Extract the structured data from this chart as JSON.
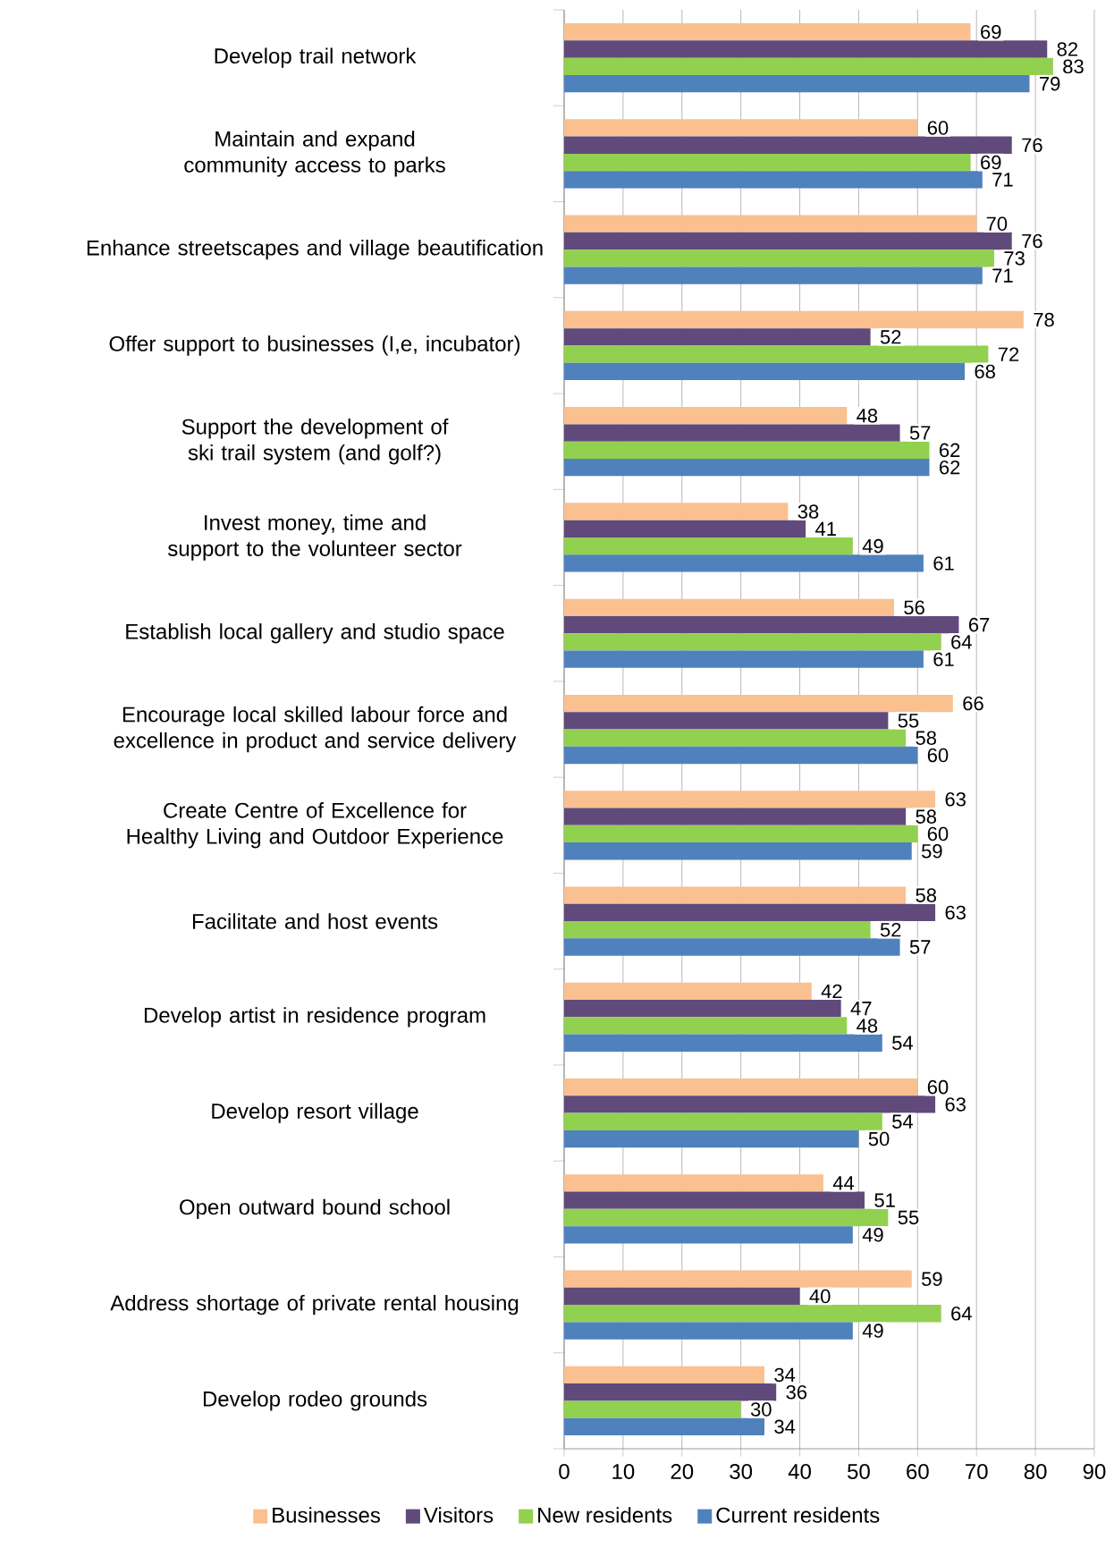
{
  "chart_data": {
    "type": "bar",
    "orientation": "horizontal",
    "categories": [
      "Develop trail network",
      "Maintain and expand community access to parks",
      "Enhance streetscapes and village beautification",
      "Offer support to businesses (I,e, incubator)",
      "Support the development of ski trail system (and golf?)",
      "Invest money, time and support to the volunteer sector",
      "Establish local gallery and studio space",
      "Encourage local skilled labour force and excellence in product and service delivery",
      "Create Centre of Excellence for Healthy Living and Outdoor Experience",
      "Facilitate and host events",
      "Develop artist in residence program",
      "Develop resort village",
      "Open outward bound school",
      "Address shortage of private rental housing",
      "Develop rodeo grounds"
    ],
    "series": [
      {
        "name": "Businesses",
        "color": "#fac090",
        "values": [
          69,
          60,
          70,
          78,
          48,
          38,
          56,
          66,
          63,
          58,
          42,
          60,
          44,
          59,
          34
        ]
      },
      {
        "name": "Visitors",
        "color": "#604a7b",
        "values": [
          82,
          76,
          76,
          52,
          57,
          41,
          67,
          55,
          58,
          63,
          47,
          63,
          51,
          40,
          36
        ]
      },
      {
        "name": "New residents",
        "color": "#92d050",
        "values": [
          83,
          69,
          73,
          72,
          62,
          49,
          64,
          58,
          60,
          52,
          48,
          54,
          55,
          64,
          30
        ]
      },
      {
        "name": "Current residents",
        "color": "#4f81bd",
        "values": [
          79,
          71,
          71,
          68,
          62,
          61,
          61,
          60,
          59,
          57,
          54,
          50,
          49,
          49,
          34
        ]
      }
    ],
    "xlim": [
      0,
      90
    ],
    "xticks": [
      0,
      10,
      20,
      30,
      40,
      50,
      60,
      70,
      80,
      90
    ],
    "grid": "x",
    "legend": "bottom",
    "data_labels": true
  }
}
